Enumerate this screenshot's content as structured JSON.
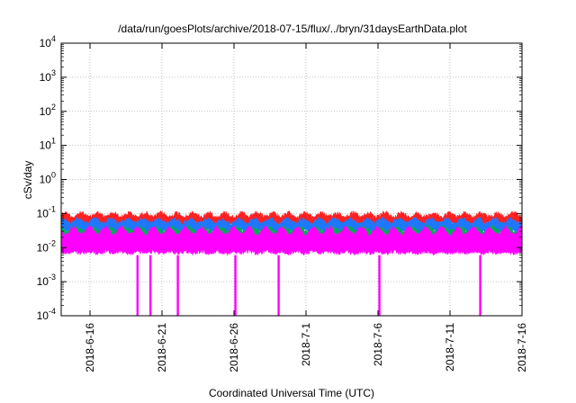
{
  "chart_data": {
    "type": "line",
    "title": "/data/run/goesPlots/archive/2018-07-15/flux/../bryn/31daysEarthData.plot",
    "xlabel": "Coordinated Universal Time (UTC)",
    "ylabel": "cSv/day",
    "yscale": "log",
    "ylim": [
      0.0001,
      10000
    ],
    "xlim": [
      "2018-06-14",
      "2018-07-16"
    ],
    "grid": true,
    "y_ticks": [
      {
        "base": "10",
        "exp": "-4"
      },
      {
        "base": "10",
        "exp": "-3"
      },
      {
        "base": "10",
        "exp": "-2"
      },
      {
        "base": "10",
        "exp": "-1"
      },
      {
        "base": "10",
        "exp": "0"
      },
      {
        "base": "10",
        "exp": "1"
      },
      {
        "base": "10",
        "exp": "2"
      },
      {
        "base": "10",
        "exp": "3"
      },
      {
        "base": "10",
        "exp": "4"
      }
    ],
    "x_ticks": [
      "2018-6-16",
      "2018-6-21",
      "2018-6-26",
      "2018-7-1",
      "2018-7-6",
      "2018-7-11",
      "2018-7-16"
    ],
    "series": [
      {
        "color": "#ff2020",
        "envelope_low": 0.04,
        "envelope_high": 0.12
      },
      {
        "color": "#1e78ff",
        "envelope_low": 0.025,
        "envelope_high": 0.08
      },
      {
        "color": "#00b050",
        "envelope_low": 0.015,
        "envelope_high": 0.045
      },
      {
        "color": "#ff00ff",
        "envelope_low": 0.006,
        "envelope_high": 0.045
      }
    ],
    "dips": [
      {
        "date": "2018-06-19.3",
        "value": 0.0001
      },
      {
        "date": "2018-06-20.2",
        "value": 0.0001
      },
      {
        "date": "2018-06-22.1",
        "value": 0.0001
      },
      {
        "date": "2018-06-26.1",
        "value": 0.0001
      },
      {
        "date": "2018-06-29.1",
        "value": 0.0001
      },
      {
        "date": "2018-07-06.1",
        "value": 0.0001
      },
      {
        "date": "2018-07-13.1",
        "value": 0.0001
      }
    ]
  }
}
